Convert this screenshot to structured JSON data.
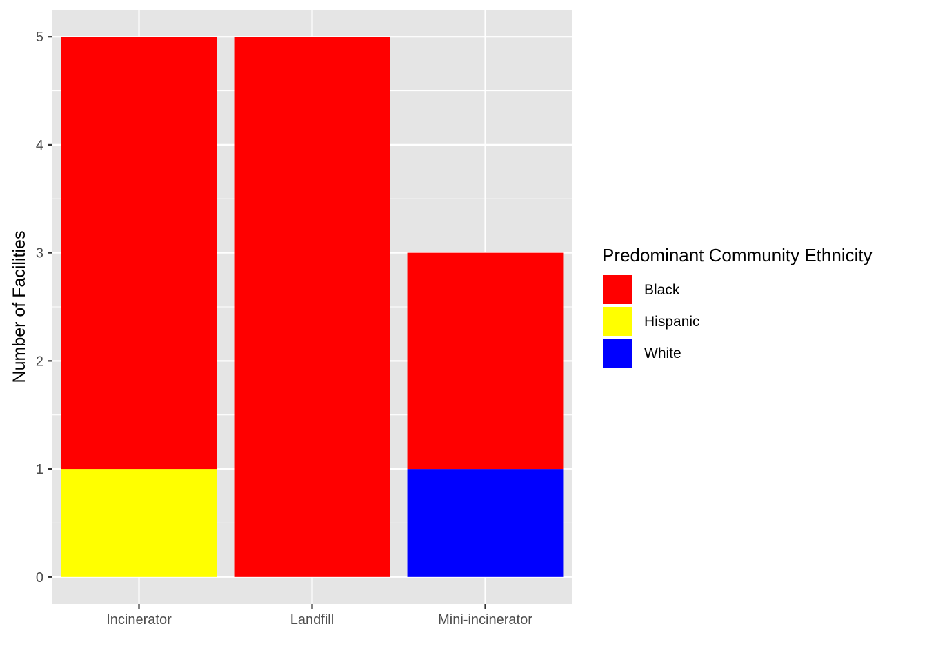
{
  "chart_data": {
    "type": "bar",
    "stacked": true,
    "categories": [
      "Incinerator",
      "Landfill",
      "Mini-incinerator"
    ],
    "series": [
      {
        "name": "White",
        "color": "#0000FF",
        "values": [
          0,
          0,
          1
        ]
      },
      {
        "name": "Hispanic",
        "color": "#FFFF00",
        "values": [
          1,
          0,
          0
        ]
      },
      {
        "name": "Black",
        "color": "#FF0000",
        "values": [
          4,
          5,
          2
        ]
      }
    ],
    "xlabel": "",
    "ylabel": "Number of Facilities",
    "ylim": [
      -0.25,
      5.25
    ],
    "yticks": [
      0,
      1,
      2,
      3,
      4,
      5
    ],
    "grid": true,
    "panel_background": "#E5E5E5",
    "legend": {
      "title": "Predominant Community Ethnicity",
      "position": "right",
      "entries": [
        {
          "label": "Black",
          "color": "#FF0000"
        },
        {
          "label": "Hispanic",
          "color": "#FFFF00"
        },
        {
          "label": "White",
          "color": "#0000FF"
        }
      ]
    }
  }
}
